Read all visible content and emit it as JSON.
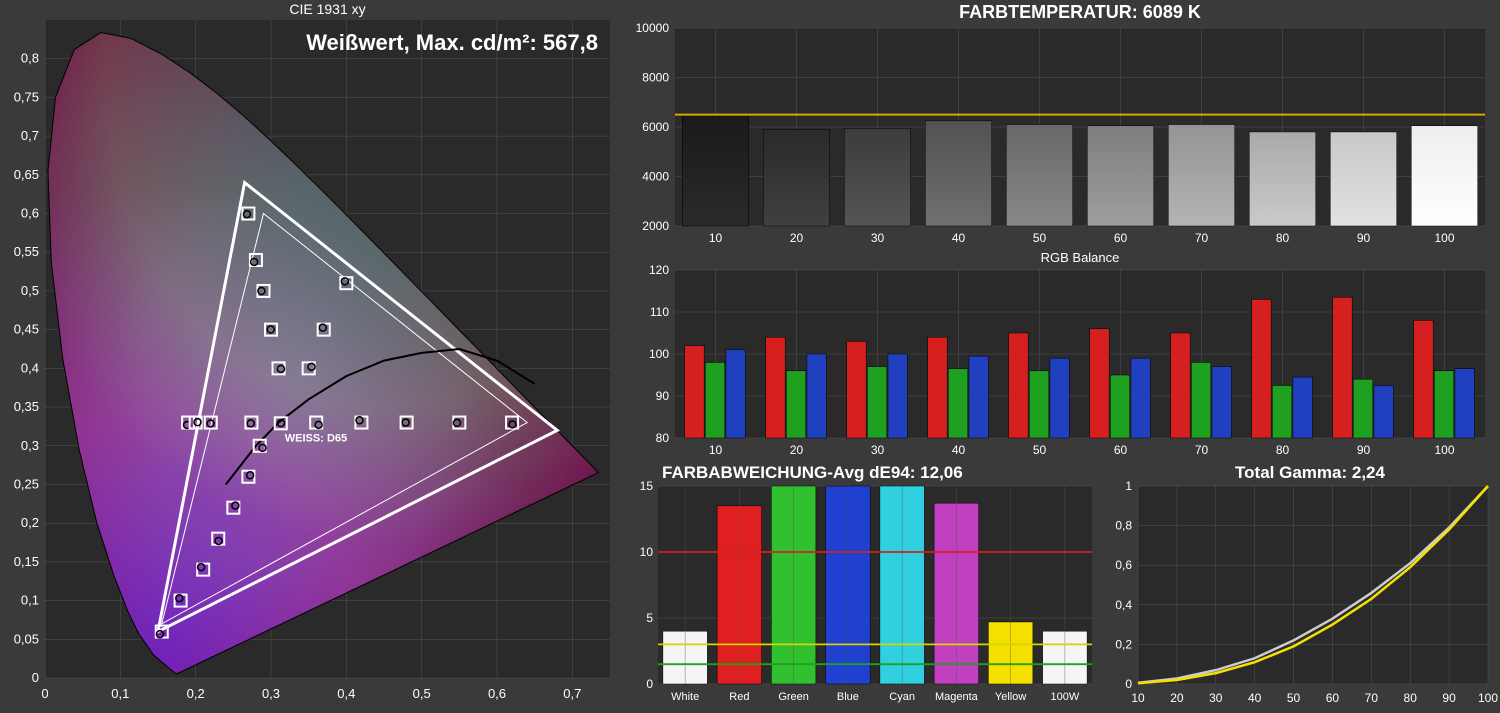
{
  "cie": {
    "title": "CIE 1931 xy",
    "overlay": "Weißwert, Max. cd/m²: 567,8",
    "whitepoint_label": "WEISS: D65",
    "xlim": [
      0,
      0.75
    ],
    "ylim": [
      0,
      0.85
    ],
    "xticks": [
      0,
      0.1,
      0.2,
      0.3,
      0.4,
      0.5,
      0.6,
      0.7
    ],
    "yticks": [
      0,
      0.05,
      0.1,
      0.15,
      0.2,
      0.25,
      0.3,
      0.35,
      0.4,
      0.45,
      0.5,
      0.55,
      0.6,
      0.65,
      0.7,
      0.75,
      0.8
    ],
    "triangle": [
      [
        0.15,
        0.06
      ],
      [
        0.265,
        0.64
      ],
      [
        0.68,
        0.32
      ]
    ],
    "inner_tri": [
      [
        0.155,
        0.07
      ],
      [
        0.29,
        0.6
      ],
      [
        0.64,
        0.33
      ]
    ],
    "whitepoint": [
      0.313,
      0.329
    ],
    "target_boxes": [
      [
        0.155,
        0.06
      ],
      [
        0.18,
        0.1
      ],
      [
        0.21,
        0.14
      ],
      [
        0.23,
        0.18
      ],
      [
        0.25,
        0.22
      ],
      [
        0.27,
        0.26
      ],
      [
        0.285,
        0.3
      ],
      [
        0.274,
        0.33
      ],
      [
        0.313,
        0.329
      ],
      [
        0.19,
        0.33
      ],
      [
        0.2,
        0.33
      ],
      [
        0.22,
        0.33
      ],
      [
        0.31,
        0.4
      ],
      [
        0.3,
        0.45
      ],
      [
        0.29,
        0.5
      ],
      [
        0.28,
        0.54
      ],
      [
        0.27,
        0.6
      ],
      [
        0.36,
        0.33
      ],
      [
        0.42,
        0.33
      ],
      [
        0.48,
        0.33
      ],
      [
        0.55,
        0.33
      ],
      [
        0.62,
        0.33
      ],
      [
        0.35,
        0.4
      ],
      [
        0.37,
        0.45
      ],
      [
        0.4,
        0.51
      ]
    ],
    "locus_curve": [
      [
        0.24,
        0.25
      ],
      [
        0.28,
        0.3
      ],
      [
        0.31,
        0.33
      ],
      [
        0.35,
        0.36
      ],
      [
        0.4,
        0.39
      ],
      [
        0.45,
        0.41
      ],
      [
        0.5,
        0.42
      ],
      [
        0.55,
        0.425
      ],
      [
        0.6,
        0.41
      ],
      [
        0.65,
        0.38
      ]
    ]
  },
  "colortemp": {
    "title": "FARBTEMPERATUR: 6089 K",
    "ylim": [
      2000,
      10000
    ],
    "yticks": [
      2000,
      4000,
      6000,
      8000,
      10000
    ],
    "xticks": [
      10,
      20,
      30,
      40,
      50,
      60,
      70,
      80,
      90,
      100
    ],
    "target": 6500,
    "values": [
      6500,
      5900,
      5950,
      6250,
      6100,
      6050,
      6100,
      5800,
      5800,
      6050
    ],
    "bar_grays_start": [
      "#1a1a1a",
      "#2a2a2a",
      "#3c3c3c",
      "#525252",
      "#686868",
      "#7e7e7e",
      "#949494",
      "#aaaaaa",
      "#c8c8c8",
      "#eeeeee"
    ],
    "bar_grays_end": [
      "#2a2a2a",
      "#404040",
      "#555555",
      "#707070",
      "#888888",
      "#9e9e9e",
      "#b4b4b4",
      "#cacaca",
      "#e2e2e2",
      "#ffffff"
    ],
    "target_line_color": "#d4a800"
  },
  "rgb": {
    "title": "RGB Balance",
    "ylim": [
      80,
      120
    ],
    "yticks": [
      80,
      90,
      100,
      110,
      120
    ],
    "xticks": [
      10,
      20,
      30,
      40,
      50,
      60,
      70,
      80,
      90,
      100
    ],
    "colors": {
      "r": "#d62020",
      "g": "#20a020",
      "b": "#2040c0"
    },
    "r": [
      102,
      104,
      103,
      104,
      105,
      106,
      105,
      113,
      113.5,
      108
    ],
    "g": [
      98,
      96,
      97,
      96.5,
      96,
      95,
      98,
      92.5,
      94,
      96
    ],
    "b": [
      101,
      100,
      100,
      99.5,
      99,
      99,
      97,
      94.5,
      92.5,
      96.5
    ]
  },
  "dev": {
    "title": "FARBABWEICHUNG-Avg dE94: 12,06",
    "ylim": [
      0,
      15
    ],
    "yticks": [
      0,
      5,
      10,
      15
    ],
    "labels": [
      "White",
      "Red",
      "Green",
      "Blue",
      "Cyan",
      "Magenta",
      "Yellow",
      "100W"
    ],
    "values": [
      4,
      13.5,
      15,
      15,
      15,
      13.7,
      4.7,
      4
    ],
    "colors": [
      "#f5f5f5",
      "#e02020",
      "#30c030",
      "#2040d0",
      "#30d0e0",
      "#c040c0",
      "#f5e000",
      "#f5f5f5"
    ],
    "ref_red": 10,
    "ref_yellow": 3,
    "ref_green": 1.5,
    "ref_red_color": "#d02020",
    "ref_yellow_color": "#d4d400",
    "ref_green_color": "#20a020"
  },
  "gamma": {
    "title": "Total Gamma: 2,24",
    "xlim": [
      10,
      100
    ],
    "ylim": [
      0,
      1
    ],
    "xticks": [
      10,
      20,
      30,
      40,
      50,
      60,
      70,
      80,
      90,
      100
    ],
    "yticks": [
      0,
      0.2,
      0.4,
      0.6,
      0.8,
      1
    ],
    "colors": {
      "ref": "#cccccc",
      "meas": "#f5e000"
    },
    "ref": [
      [
        10,
        0.006
      ],
      [
        20,
        0.028
      ],
      [
        30,
        0.07
      ],
      [
        40,
        0.13
      ],
      [
        50,
        0.22
      ],
      [
        60,
        0.33
      ],
      [
        70,
        0.46
      ],
      [
        80,
        0.61
      ],
      [
        90,
        0.79
      ],
      [
        100,
        1.0
      ]
    ],
    "meas": [
      [
        10,
        0.004
      ],
      [
        20,
        0.02
      ],
      [
        30,
        0.055
      ],
      [
        40,
        0.11
      ],
      [
        50,
        0.19
      ],
      [
        60,
        0.3
      ],
      [
        70,
        0.43
      ],
      [
        80,
        0.59
      ],
      [
        90,
        0.78
      ],
      [
        100,
        1.0
      ]
    ]
  },
  "bg": "#3a3a3a",
  "plot_bg": "#2a2a2a",
  "grid": "#555"
}
